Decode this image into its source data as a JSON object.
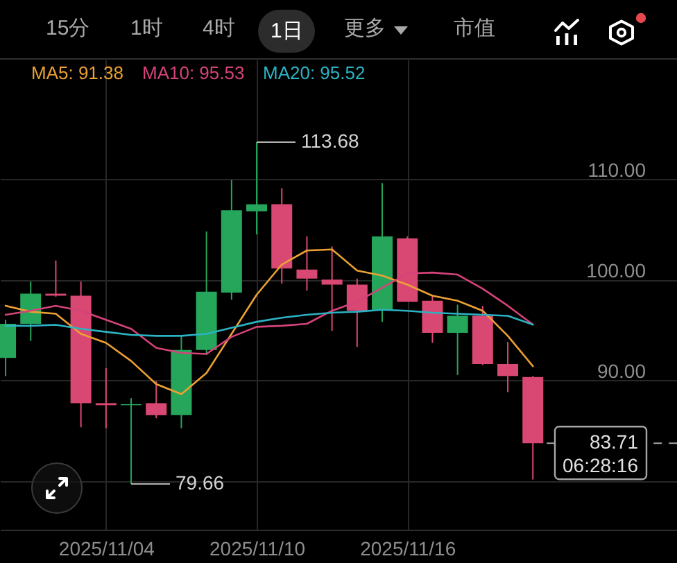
{
  "chart_data": {
    "type": "candlestick",
    "x": [
      "2025-10-31",
      "2025-11-01",
      "2025-11-02",
      "2025-11-03",
      "2025-11-04",
      "2025-11-05",
      "2025-11-06",
      "2025-11-07",
      "2025-11-08",
      "2025-11-09",
      "2025-11-10",
      "2025-11-11",
      "2025-11-12",
      "2025-11-13",
      "2025-11-14",
      "2025-11-15",
      "2025-11-16",
      "2025-11-17",
      "2025-11-18",
      "2025-11-19",
      "2025-11-20",
      "2025-11-21"
    ],
    "ohlc": [
      [
        92.2,
        96.0,
        90.4,
        95.6
      ],
      [
        95.6,
        99.8,
        93.9,
        98.6
      ],
      [
        98.6,
        101.9,
        98.3,
        98.4
      ],
      [
        98.4,
        99.8,
        85.3,
        87.7
      ],
      [
        87.7,
        91.2,
        85.2,
        87.5
      ],
      [
        87.5,
        88.2,
        79.66,
        87.6
      ],
      [
        87.7,
        89.9,
        86.2,
        86.5
      ],
      [
        86.5,
        94.4,
        85.2,
        93.0
      ],
      [
        93.0,
        104.8,
        92.5,
        98.8
      ],
      [
        98.7,
        109.9,
        98.0,
        106.9
      ],
      [
        106.8,
        113.68,
        104.5,
        107.5
      ],
      [
        107.5,
        109.1,
        99.6,
        101.1
      ],
      [
        101.0,
        104.3,
        98.9,
        100.1
      ],
      [
        100.0,
        103.3,
        94.9,
        99.5
      ],
      [
        99.5,
        100.1,
        93.3,
        96.9
      ],
      [
        97.0,
        109.6,
        95.8,
        104.3
      ],
      [
        104.1,
        104.3,
        97.8,
        97.8
      ],
      [
        97.9,
        98.5,
        93.7,
        94.7
      ],
      [
        94.7,
        97.5,
        90.5,
        96.4
      ],
      [
        96.4,
        97.4,
        91.5,
        91.6
      ],
      [
        91.6,
        93.8,
        88.8,
        90.4
      ],
      [
        90.3,
        90.4,
        80.1,
        83.71
      ]
    ],
    "colors": [
      "#26a65b",
      "#26a65b",
      "#d94872",
      "#d94872",
      "#d94872",
      "#26a65b",
      "#d94872",
      "#26a65b",
      "#26a65b",
      "#26a65b",
      "#26a65b",
      "#d94872",
      "#d94872",
      "#d94872",
      "#d94872",
      "#26a65b",
      "#d94872",
      "#d94872",
      "#26a65b",
      "#d94872",
      "#d94872",
      "#d94872"
    ],
    "series": [
      {
        "type": "line",
        "name": "MA5: 91.38",
        "color": "#eba134",
        "values": [
          97.4,
          96.8,
          96.6,
          94.6,
          93.7,
          91.9,
          89.6,
          88.6,
          90.7,
          94.6,
          98.5,
          101.5,
          102.9,
          103.0,
          100.9,
          100.4,
          99.5,
          98.4,
          97.9,
          96.9,
          94.4,
          91.38
        ]
      },
      {
        "type": "line",
        "name": "MA10: 95.53",
        "color": "#d4437a",
        "values": [
          96.5,
          96.9,
          97.4,
          96.9,
          96.0,
          95.1,
          93.2,
          92.7,
          92.6,
          94.3,
          95.3,
          95.4,
          95.6,
          96.9,
          97.8,
          99.2,
          100.6,
          100.7,
          100.5,
          99.1,
          97.4,
          95.53
        ]
      },
      {
        "type": "line",
        "name": "MA20: 95.52",
        "color": "#2bb3c4",
        "values": [
          95.4,
          95.4,
          95.5,
          95.1,
          94.8,
          94.5,
          94.4,
          94.4,
          94.6,
          95.2,
          95.8,
          96.2,
          96.5,
          96.7,
          96.8,
          97.0,
          96.9,
          96.7,
          96.6,
          96.5,
          96.4,
          95.52
        ]
      }
    ],
    "xlim": [
      "2025-10-30T18:40",
      "2025-11-26T17:45"
    ],
    "xticks": [
      {
        "value": "2025-11-04",
        "label": "2025/11/04"
      },
      {
        "value": "2025-11-10",
        "label": "2025/11/10"
      },
      {
        "value": "2025-11-16",
        "label": "2025/11/16"
      }
    ],
    "ylim": [
      75.1,
      121.9
    ],
    "yticks": [
      {
        "value": 80,
        "label": null
      },
      {
        "value": 90,
        "label": "90.00"
      },
      {
        "value": 100,
        "label": "100.00"
      },
      {
        "value": 110,
        "label": "110.00"
      }
    ],
    "grid": true,
    "legend": "top left",
    "ref_lines": [
      {
        "axis": "y",
        "value": 83.71,
        "label": "83.71",
        "line_style": "dashed",
        "color": "#a6a6a6"
      }
    ],
    "annotations": [
      "15分",
      "1时",
      "4时",
      "1日",
      "更多",
      "市值",
      "06:28:16",
      {
        "text": "113.68",
        "x": "2025-11-10",
        "y": 113.68
      },
      {
        "text": "79.66",
        "x": "2025-11-05",
        "y": 79.66
      }
    ]
  }
}
